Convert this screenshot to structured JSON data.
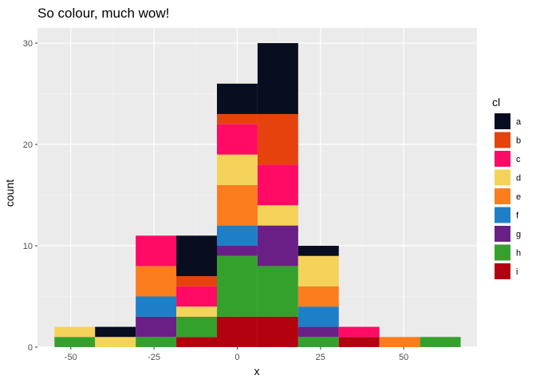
{
  "chart_data": {
    "type": "bar",
    "stacked": true,
    "title": "So colour, much wow!",
    "xlabel": "x",
    "ylabel": "count",
    "xlim": [
      -60,
      72
    ],
    "ylim": [
      0,
      31.5
    ],
    "xticks": [
      -50,
      -25,
      0,
      25,
      50
    ],
    "yticks": [
      0,
      10,
      20,
      30
    ],
    "grid": true,
    "legend": {
      "title": "cl",
      "position": "right"
    },
    "bin_width": 12.2,
    "bin_centers": [
      -48.8,
      -36.6,
      -24.4,
      -12.2,
      0,
      12.2,
      24.4,
      36.6,
      48.8,
      61
    ],
    "series": [
      {
        "name": "a",
        "color": "#080d20",
        "values": [
          0,
          1,
          0,
          4,
          3,
          7,
          1,
          0,
          0,
          0
        ]
      },
      {
        "name": "b",
        "color": "#e6420e",
        "values": [
          0,
          0,
          0,
          1,
          1,
          5,
          0,
          0,
          0,
          0
        ]
      },
      {
        "name": "c",
        "color": "#ff0a64",
        "values": [
          0,
          0,
          3,
          2,
          3,
          4,
          0,
          1,
          0,
          0
        ]
      },
      {
        "name": "d",
        "color": "#f5d35a",
        "values": [
          1,
          1,
          0,
          1,
          3,
          2,
          3,
          0,
          0,
          0
        ]
      },
      {
        "name": "e",
        "color": "#fb7d1e",
        "values": [
          0,
          0,
          3,
          0,
          4,
          0,
          2,
          0,
          1,
          0
        ]
      },
      {
        "name": "f",
        "color": "#1f7fc6",
        "values": [
          0,
          0,
          2,
          0,
          2,
          0,
          2,
          0,
          0,
          0
        ]
      },
      {
        "name": "g",
        "color": "#6a1f87",
        "values": [
          0,
          0,
          2,
          0,
          1,
          4,
          1,
          0,
          0,
          0
        ]
      },
      {
        "name": "h",
        "color": "#35a12d",
        "values": [
          1,
          0,
          1,
          2,
          6,
          5,
          1,
          0,
          0,
          1
        ]
      },
      {
        "name": "i",
        "color": "#b20210",
        "values": [
          0,
          0,
          0,
          1,
          3,
          3,
          0,
          1,
          0,
          0
        ]
      }
    ]
  }
}
